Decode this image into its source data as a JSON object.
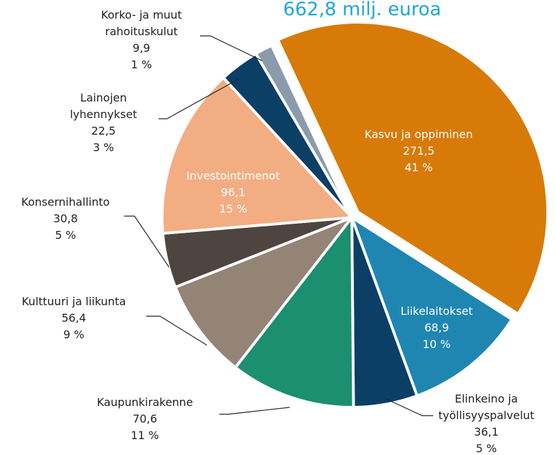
{
  "chart_data": {
    "type": "pie",
    "title": "662,8 milj. euroa",
    "categories": [
      "Kasvu ja oppiminen",
      "Liikelaitokset",
      "Elinkeino ja\ntyöllisyyspalvelut",
      "Kaupunkirakenne",
      "Kulttuuri ja liikunta",
      "Konsernihallinto",
      "Investointimenot",
      "Lainojen\nlyhennykset",
      "Korko- ja muut\nrahoituskulut"
    ],
    "values": [
      271.5,
      68.9,
      36.1,
      70.6,
      56.4,
      30.8,
      96.1,
      22.5,
      9.9
    ],
    "value_labels": [
      "271,5",
      "68,9",
      "36,1",
      "70,6",
      "56,4",
      "30,8",
      "96,1",
      "22,5",
      "9,9"
    ],
    "percent_labels": [
      "41 %",
      "10 %",
      "5 %",
      "11 %",
      "9 %",
      "5 %",
      "15 %",
      "3 %",
      "1 %"
    ],
    "colors": [
      "#d87a08",
      "#1f86b2",
      "#0c3f66",
      "#1b8f6f",
      "#938476",
      "#4e4541",
      "#f3ad82",
      "#0c3f66",
      "#8b9bab"
    ]
  }
}
